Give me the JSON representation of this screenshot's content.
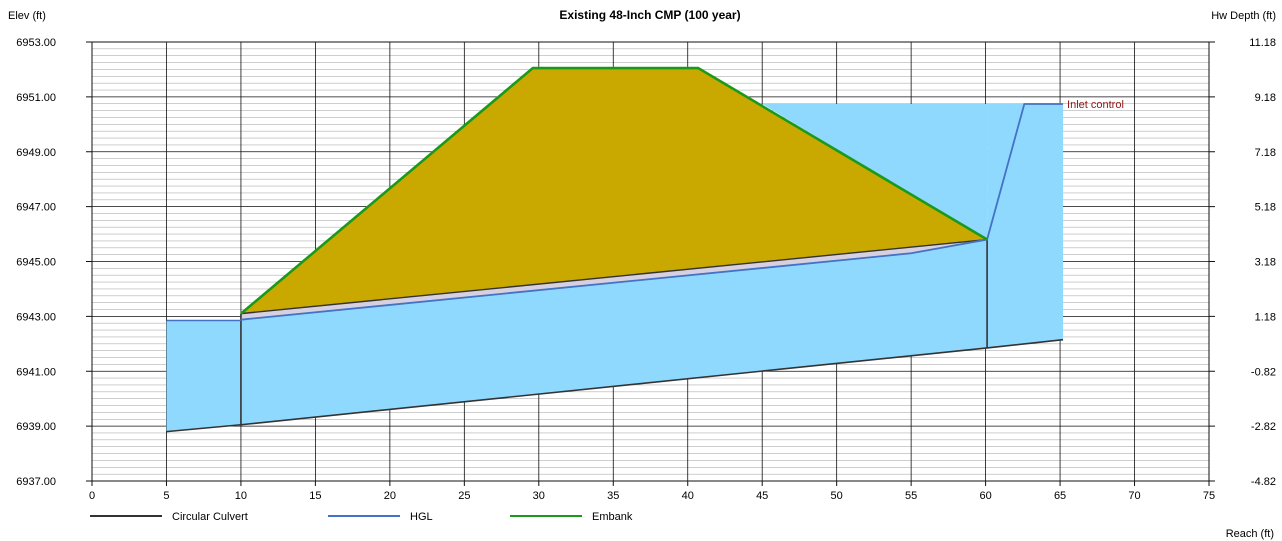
{
  "chart_data": {
    "type": "area",
    "title": "Existing 48-Inch CMP (100 year)",
    "ylabel": "Elev (ft)",
    "y2label": "Hw Depth (ft)",
    "xlabel": "Reach (ft)",
    "xlim": [
      0,
      75
    ],
    "ylim": [
      6937,
      6953
    ],
    "x_ticks": [
      "0",
      "5",
      "10",
      "15",
      "20",
      "25",
      "30",
      "35",
      "40",
      "45",
      "50",
      "55",
      "60",
      "65",
      "70",
      "75"
    ],
    "y_ticks": [
      "6937.00",
      "6939.00",
      "6941.00",
      "6943.00",
      "6945.00",
      "6947.00",
      "6949.00",
      "6951.00",
      "6953.00"
    ],
    "y2_ticks": [
      "-4.82",
      "-2.82",
      "-0.82",
      "1.18",
      "3.18",
      "5.18",
      "7.18",
      "9.18",
      "11.18"
    ],
    "grid": true,
    "legend_position": "bottom-left",
    "colors": {
      "culvert": "#333333",
      "hgl": "#4472c4",
      "embank": "#1a9a1a",
      "embank_fill": "#c9a900",
      "water_fill": "#8fd9ff",
      "pipe_fill": "#d6d0e0",
      "inlet_label": "#8b1a1a"
    },
    "series": [
      {
        "name": "Circular Culvert",
        "x": [
          10,
          60.1
        ],
        "y": [
          6943.1,
          6945.8
        ]
      },
      {
        "name": "HGL",
        "x": [
          10,
          55,
          60.1,
          62.6,
          65.2
        ],
        "y": [
          6942.88,
          6945.3,
          6945.8,
          6950.74,
          6950.74
        ]
      },
      {
        "name": "Embank",
        "x": [
          10,
          29.6,
          40.7,
          60.1
        ],
        "y": [
          6943.1,
          6952.05,
          6952.05,
          6945.8
        ]
      }
    ],
    "culvert_invert": {
      "x": [
        5,
        10,
        60.1,
        65.2
      ],
      "y": [
        6938.8,
        6939.05,
        6941.85,
        6942.15
      ]
    },
    "tailwater": {
      "x": [
        5,
        10
      ],
      "y": [
        6942.85,
        6942.85
      ]
    },
    "headwater_elev": 6950.74,
    "headwater_start_x": 45,
    "annotation": {
      "x": 65.2,
      "y": 6950.74,
      "text": "Inlet control"
    }
  }
}
